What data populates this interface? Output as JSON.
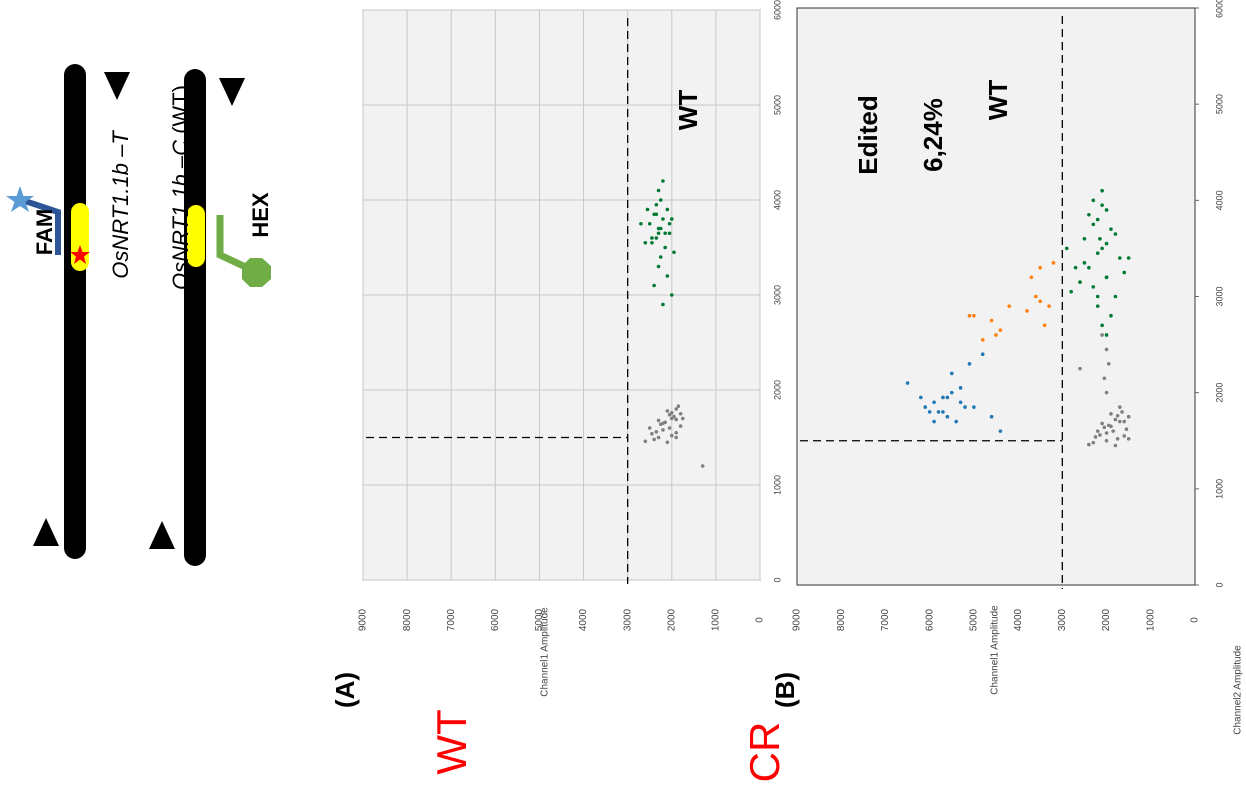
{
  "diagram": {
    "probe1": "FAM",
    "allele1": "OsNRT1.1b –T",
    "allele2_name": "OsNRT1.1b –C",
    "allele2_tag": "(WT)",
    "probe2": "HEX"
  },
  "chart_data": [
    {
      "type": "scatter",
      "panel_label": "(A)",
      "sample_label": "WT",
      "ylabel": "Channel1 Amplitude",
      "annotations": [
        "WT"
      ],
      "xlim": [
        0,
        6000
      ],
      "ylim": [
        0,
        9000
      ],
      "xticks": [
        0,
        1000,
        2000,
        3000,
        4000,
        5000,
        6000
      ],
      "yticks": [
        0,
        1000,
        2000,
        3000,
        4000,
        5000,
        6000,
        7000,
        8000,
        9000
      ],
      "grid": true,
      "threshold_x": 1500,
      "threshold_y": 3000,
      "series": [
        {
          "color": "#808080",
          "x": [
            1450,
            1500,
            1550,
            1600,
            1650,
            1700,
            1750,
            1800,
            1480,
            1520,
            1580,
            1620,
            1680,
            1720,
            1780,
            1830,
            1460,
            1540,
            1600,
            1660,
            1700,
            1760,
            1500,
            1560,
            1640,
            1690,
            1740,
            1200
          ],
          "y": [
            2100,
            2300,
            1900,
            2500,
            2200,
            2000,
            1800,
            1900,
            2400,
            2000,
            2200,
            1800,
            2300,
            1950,
            2100,
            1850,
            2600,
            2450,
            2050,
            2150,
            1750,
            2000,
            1900,
            2350,
            2250,
            1900,
            2050,
            1300
          ]
        },
        {
          "color": "#007a33",
          "x": [
            2900,
            3000,
            3100,
            3200,
            3300,
            3400,
            3500,
            3550,
            3600,
            3650,
            3700,
            3750,
            3800,
            3850,
            3900,
            3950,
            4000,
            4100,
            4200,
            3450,
            3550,
            3650,
            3750,
            3850,
            3600,
            3700,
            3800,
            3900,
            3750,
            3650
          ],
          "y": [
            2200,
            2000,
            2400,
            2100,
            2300,
            2250,
            2150,
            2450,
            2350,
            2050,
            2300,
            2500,
            2200,
            2400,
            2100,
            2350,
            2250,
            2300,
            2200,
            1950,
            2600,
            2150,
            2050,
            2350,
            2450,
            2250,
            2000,
            2550,
            2700,
            2300
          ]
        }
      ]
    },
    {
      "type": "scatter",
      "panel_label": "(B)",
      "sample_label": "CR",
      "ylabel": "Channel1 Amplitude",
      "xlabel": "Channel2 Amplitude",
      "annotations": [
        "Edited",
        "6,24%",
        "WT"
      ],
      "xlim": [
        0,
        6000
      ],
      "ylim": [
        0,
        9000
      ],
      "xticks": [
        0,
        1000,
        2000,
        3000,
        4000,
        5000,
        6000
      ],
      "yticks": [
        0,
        1000,
        2000,
        3000,
        4000,
        5000,
        6000,
        7000,
        8000,
        9000
      ],
      "grid": false,
      "threshold_x": 1500,
      "threshold_y": 3000,
      "series": [
        {
          "color": "#808080",
          "x": [
            1450,
            1500,
            1550,
            1600,
            1650,
            1700,
            1750,
            1800,
            1480,
            1520,
            1580,
            1620,
            1680,
            1720,
            1780,
            1850,
            1460,
            1540,
            1600,
            1660,
            1700,
            1760,
            1520,
            1560,
            1640,
            2000,
            2150,
            2300,
            2450,
            2600,
            2250
          ],
          "y": [
            1800,
            2000,
            1600,
            2200,
            1900,
            1700,
            1500,
            1650,
            2300,
            1750,
            2000,
            1550,
            2100,
            1800,
            1900,
            1700,
            2400,
            2250,
            1850,
            1950,
            1600,
            1750,
            1500,
            2150,
            2050,
            2000,
            2050,
            1950,
            2000,
            2100,
            2600
          ]
        },
        {
          "color": "#007a33",
          "x": [
            2600,
            2700,
            2800,
            2900,
            3000,
            3100,
            3200,
            3300,
            3400,
            3500,
            3600,
            3700,
            3800,
            3900,
            4000,
            4100,
            3050,
            3150,
            3250,
            3350,
            3450,
            3550,
            3650,
            3750,
            3850,
            3950,
            3300,
            3400,
            3500,
            3200,
            3000,
            3600
          ],
          "y": [
            2000,
            2100,
            1900,
            2200,
            1800,
            2300,
            2000,
            2400,
            1700,
            2100,
            2500,
            1900,
            2200,
            2000,
            2300,
            2100,
            2800,
            2600,
            1600,
            2500,
            2200,
            2000,
            1800,
            2300,
            2400,
            2100,
            2700,
            1500,
            2900,
            2000,
            2200,
            2150
          ]
        },
        {
          "color": "#1f77b4",
          "x": [
            2100,
            1950,
            1900,
            1850,
            1800,
            1750,
            1700,
            1950,
            2000,
            1850,
            1800,
            1900,
            1700,
            2200,
            2300,
            2400,
            1600,
            1750,
            1850,
            1950,
            2050,
            1800
          ],
          "y": [
            6500,
            6200,
            5900,
            6100,
            5800,
            5600,
            5400,
            5700,
            5500,
            5200,
            6000,
            5300,
            5900,
            5500,
            5100,
            4800,
            4400,
            4600,
            5000,
            5600,
            5300,
            5700
          ]
        },
        {
          "color": "#ff7f0e",
          "x": [
            2800,
            2750,
            2650,
            2550,
            2900,
            3000,
            2850,
            2950,
            2700,
            3300,
            3350,
            3200,
            2600,
            2800,
            2900
          ],
          "y": [
            5000,
            4600,
            4400,
            4800,
            4200,
            3600,
            3800,
            3500,
            3400,
            3500,
            3200,
            3700,
            4500,
            5100,
            3300
          ]
        }
      ]
    }
  ]
}
